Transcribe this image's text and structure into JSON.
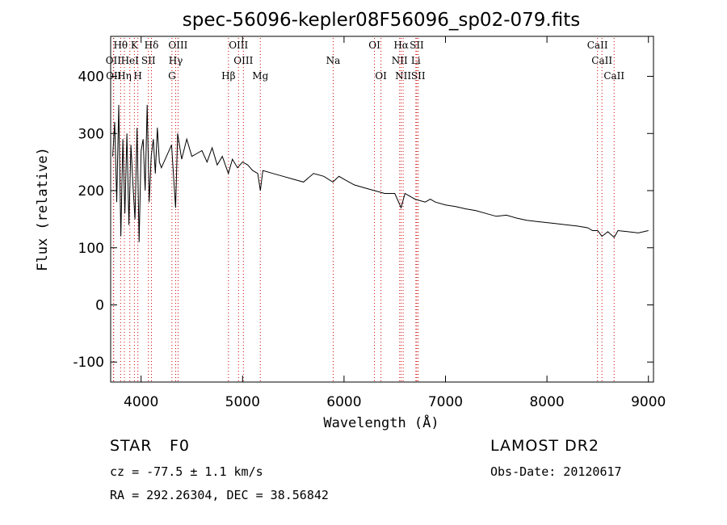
{
  "chart_data": {
    "type": "line",
    "title": "spec-56096-kepler08F56096_sp02-079.fits",
    "xlabel": "Wavelength (Å)",
    "ylabel": "Flux (relative)",
    "xlim": [
      3700,
      9050
    ],
    "ylim": [
      -135,
      470
    ],
    "xticks": [
      4000,
      5000,
      6000,
      7000,
      8000,
      9000
    ],
    "yticks": [
      -100,
      0,
      100,
      200,
      300,
      400
    ],
    "grid": false,
    "line_color": "#000000",
    "marker_color": "#cc0000",
    "series": [
      {
        "x": [
          3720,
          3740,
          3760,
          3780,
          3800,
          3820,
          3840,
          3860,
          3880,
          3900,
          3920,
          3940,
          3960,
          3980,
          4000,
          4020,
          4040,
          4060,
          4080,
          4100,
          4120,
          4140,
          4160,
          4180,
          4200,
          4250,
          4300,
          4340,
          4360,
          4400,
          4450,
          4500,
          4550,
          4600,
          4650,
          4700,
          4750,
          4800,
          4860,
          4900,
          4950,
          5000,
          5050,
          5100,
          5150,
          5175,
          5200,
          5300,
          5400,
          5500,
          5600,
          5700,
          5800,
          5890,
          5950,
          6000,
          6050,
          6100,
          6200,
          6300,
          6400,
          6500,
          6563,
          6600,
          6700,
          6800,
          6850,
          6900,
          7000,
          7100,
          7200,
          7300,
          7400,
          7500,
          7600,
          7700,
          7800,
          7900,
          8000,
          8100,
          8200,
          8300,
          8400,
          8450,
          8500,
          8542,
          8600,
          8662,
          8700,
          8800,
          8900,
          9000
        ],
        "values": [
          260,
          320,
          180,
          350,
          120,
          290,
          160,
          300,
          140,
          280,
          210,
          150,
          310,
          110,
          270,
          290,
          200,
          350,
          180,
          260,
          290,
          230,
          310,
          250,
          240,
          260,
          280,
          170,
          300,
          255,
          290,
          260,
          265,
          270,
          250,
          275,
          245,
          260,
          230,
          255,
          240,
          250,
          245,
          235,
          230,
          200,
          235,
          230,
          225,
          220,
          215,
          230,
          225,
          215,
          225,
          220,
          215,
          210,
          205,
          200,
          195,
          195,
          170,
          195,
          185,
          180,
          185,
          180,
          175,
          172,
          168,
          165,
          160,
          155,
          157,
          152,
          148,
          146,
          144,
          142,
          140,
          138,
          135,
          130,
          130,
          120,
          128,
          118,
          130,
          128,
          126,
          130
        ]
      }
    ],
    "line_markers": [
      {
        "label": "Hθ",
        "x": 3798,
        "row": 0
      },
      {
        "label": "K",
        "x": 3934,
        "row": 0
      },
      {
        "label": "Hδ",
        "x": 4102,
        "row": 0
      },
      {
        "label": "OIII",
        "x": 4364,
        "row": 0
      },
      {
        "label": "OIII",
        "x": 4960,
        "row": 0
      },
      {
        "label": "OI",
        "x": 6300,
        "row": 0
      },
      {
        "label": "Hα",
        "x": 6563,
        "row": 0
      },
      {
        "label": "SII",
        "x": 6717,
        "row": 0
      },
      {
        "label": "CaII",
        "x": 8498,
        "row": 0
      },
      {
        "label": "OII",
        "x": 3727,
        "row": 1
      },
      {
        "label": "HeI",
        "x": 3889,
        "row": 1
      },
      {
        "label": "SII",
        "x": 4072,
        "row": 1
      },
      {
        "label": "Hγ",
        "x": 4341,
        "row": 1
      },
      {
        "label": "OIII",
        "x": 5008,
        "row": 1
      },
      {
        "label": "Na",
        "x": 5893,
        "row": 1
      },
      {
        "label": "NII",
        "x": 6548,
        "row": 1
      },
      {
        "label": "Li",
        "x": 6708,
        "row": 1
      },
      {
        "label": "CaII",
        "x": 8542,
        "row": 1
      },
      {
        "label": "OII",
        "x": 3730,
        "row": 2
      },
      {
        "label": "Hη",
        "x": 3835,
        "row": 2
      },
      {
        "label": "H",
        "x": 3968,
        "row": 2
      },
      {
        "label": "G",
        "x": 4304,
        "row": 2
      },
      {
        "label": "Hβ",
        "x": 4861,
        "row": 2
      },
      {
        "label": "Mg",
        "x": 5175,
        "row": 2
      },
      {
        "label": "OI",
        "x": 6364,
        "row": 2
      },
      {
        "label": "NII",
        "x": 6583,
        "row": 2
      },
      {
        "label": "SII",
        "x": 6731,
        "row": 2
      },
      {
        "label": "CaII",
        "x": 8662,
        "row": 2
      }
    ]
  },
  "info": {
    "class_label": "STAR",
    "subclass": "F0",
    "survey": "LAMOST DR2",
    "cz": "cz = -77.5 ± 1.1 km/s",
    "obs_date": "Obs-Date: 20120617",
    "radec": "RA = 292.26304, DEC =  38.56842"
  }
}
